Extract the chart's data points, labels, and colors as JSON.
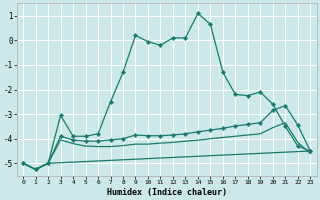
{
  "xlabel": "Humidex (Indice chaleur)",
  "background_color": "#cce8e8",
  "grid_color": "#ffffff",
  "line_color": "#1a7a6e",
  "xlim": [
    -0.5,
    23.5
  ],
  "ylim": [
    -5.5,
    1.5
  ],
  "yticks": [
    -5,
    -4,
    -3,
    -2,
    -1,
    0,
    1
  ],
  "xticks": [
    0,
    1,
    2,
    3,
    4,
    5,
    6,
    7,
    8,
    9,
    10,
    11,
    12,
    13,
    14,
    15,
    16,
    17,
    18,
    19,
    20,
    21,
    22,
    23
  ],
  "line1_x": [
    0,
    1,
    2,
    3,
    4,
    5,
    6,
    7,
    8,
    9,
    10,
    11,
    12,
    13,
    14,
    15,
    16,
    17,
    18,
    19,
    20,
    21,
    22,
    23
  ],
  "line1_y": [
    -5.0,
    -5.25,
    -5.0,
    -3.05,
    -3.9,
    -3.9,
    -3.8,
    -2.5,
    -1.3,
    0.2,
    -0.05,
    -0.2,
    0.1,
    0.1,
    1.1,
    0.65,
    -1.3,
    -2.2,
    -2.25,
    -2.1,
    -2.6,
    -3.5,
    -4.3,
    -4.5
  ],
  "line2_x": [
    0,
    1,
    2,
    3,
    4,
    5,
    6,
    7,
    8,
    9,
    10,
    11,
    12,
    13,
    14,
    15,
    16,
    17,
    18,
    19,
    20,
    21,
    22,
    23
  ],
  "line2_y": [
    -5.0,
    -5.25,
    -5.0,
    -3.9,
    -4.05,
    -4.1,
    -4.1,
    -4.05,
    -4.0,
    -3.85,
    -3.88,
    -3.88,
    -3.85,
    -3.8,
    -3.72,
    -3.65,
    -3.58,
    -3.48,
    -3.42,
    -3.35,
    -2.85,
    -2.65,
    -3.45,
    -4.5
  ],
  "line3_x": [
    0,
    1,
    2,
    3,
    4,
    5,
    6,
    7,
    8,
    9,
    10,
    11,
    12,
    13,
    14,
    15,
    16,
    17,
    18,
    19,
    20,
    21,
    22,
    23
  ],
  "line3_y": [
    -5.0,
    -5.25,
    -5.0,
    -4.05,
    -4.2,
    -4.3,
    -4.32,
    -4.32,
    -4.28,
    -4.22,
    -4.22,
    -4.18,
    -4.15,
    -4.1,
    -4.06,
    -4.0,
    -3.95,
    -3.9,
    -3.85,
    -3.8,
    -3.55,
    -3.35,
    -4.15,
    -4.6
  ],
  "line4_x": [
    0,
    1,
    2,
    23
  ],
  "line4_y": [
    -5.0,
    -5.25,
    -5.0,
    -4.5
  ]
}
